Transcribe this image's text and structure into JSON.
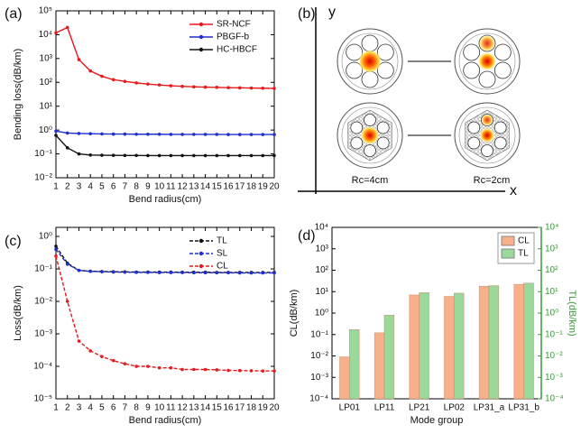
{
  "chart_data": [
    {
      "type": "line",
      "label": "(a)",
      "x_label": "Bend radius(cm)",
      "y_label": "Bending loss(dB/km)",
      "x": [
        1,
        2,
        3,
        4,
        5,
        6,
        7,
        8,
        9,
        10,
        11,
        12,
        13,
        14,
        15,
        16,
        17,
        18,
        19,
        20
      ],
      "xlim": [
        1,
        20
      ],
      "xticks": [
        1,
        2,
        3,
        4,
        5,
        6,
        7,
        8,
        9,
        10,
        11,
        12,
        13,
        14,
        15,
        16,
        17,
        18,
        19,
        20
      ],
      "ylim": [
        0.01,
        100000
      ],
      "log_y": true,
      "yticks": [
        {
          "value": 0.01,
          "label": "10⁻²"
        },
        {
          "value": 0.1,
          "label": "10⁻¹"
        },
        {
          "value": 1,
          "label": "10⁰"
        },
        {
          "value": 10,
          "label": "10¹"
        },
        {
          "value": 100,
          "label": "10²"
        },
        {
          "value": 1000,
          "label": "10³"
        },
        {
          "value": 10000,
          "label": "10⁴"
        },
        {
          "value": 100000,
          "label": "10⁵"
        }
      ],
      "line_style": "solid",
      "legend": "top-right",
      "series": [
        {
          "name": "SR-NCF",
          "color": "#e8191c",
          "values": [
            12000,
            20000,
            900,
            300,
            180,
            130,
            110,
            95,
            85,
            78,
            72,
            68,
            65,
            63,
            62,
            60,
            59,
            58,
            57,
            56
          ]
        },
        {
          "name": "PBGF-b",
          "color": "#1f2fd0",
          "values": [
            0.9,
            0.75,
            0.72,
            0.7,
            0.69,
            0.68,
            0.68,
            0.67,
            0.67,
            0.67,
            0.66,
            0.66,
            0.66,
            0.66,
            0.66,
            0.65,
            0.65,
            0.65,
            0.65,
            0.65
          ]
        },
        {
          "name": "HC-HBCF",
          "color": "#111111",
          "values": [
            0.6,
            0.18,
            0.1,
            0.09,
            0.088,
            0.087,
            0.086,
            0.086,
            0.085,
            0.085,
            0.085,
            0.085,
            0.085,
            0.085,
            0.085,
            0.085,
            0.085,
            0.085,
            0.085,
            0.085
          ]
        }
      ]
    },
    {
      "type": "line",
      "label": "(c)",
      "x_label": "Bend radius(cm)",
      "y_label": "Loss(dB/km)",
      "x": [
        1,
        2,
        3,
        4,
        5,
        6,
        7,
        8,
        9,
        10,
        11,
        12,
        13,
        14,
        15,
        16,
        17,
        18,
        19,
        20
      ],
      "xlim": [
        1,
        20
      ],
      "xticks": [
        1,
        2,
        3,
        4,
        5,
        6,
        7,
        8,
        9,
        10,
        11,
        12,
        13,
        14,
        15,
        16,
        17,
        18,
        19,
        20
      ],
      "ylim": [
        1e-05,
        1.9
      ],
      "log_y": true,
      "yticks": [
        {
          "value": 1e-05,
          "label": "10⁻⁵"
        },
        {
          "value": 0.0001,
          "label": "10⁻⁴"
        },
        {
          "value": 0.001,
          "label": "10⁻³"
        },
        {
          "value": 0.01,
          "label": "10⁻²"
        },
        {
          "value": 0.1,
          "label": "10⁻¹"
        },
        {
          "value": 1,
          "label": "10⁰"
        }
      ],
      "line_style": "dashed",
      "legend": "top-right",
      "series": [
        {
          "name": "TL",
          "color": "#111111",
          "values": [
            0.5,
            0.15,
            0.09,
            0.085,
            0.083,
            0.082,
            0.081,
            0.08,
            0.08,
            0.08,
            0.08,
            0.079,
            0.079,
            0.079,
            0.078,
            0.078,
            0.078,
            0.078,
            0.078,
            0.078
          ]
        },
        {
          "name": "SL",
          "color": "#1f2fd0",
          "values": [
            0.4,
            0.14,
            0.09,
            0.084,
            0.082,
            0.08,
            0.079,
            0.078,
            0.078,
            0.077,
            0.077,
            0.077,
            0.076,
            0.076,
            0.076,
            0.076,
            0.075,
            0.075,
            0.075,
            0.075
          ]
        },
        {
          "name": "CL",
          "color": "#e8191c",
          "values": [
            0.25,
            0.01,
            0.0006,
            0.0003,
            0.0002,
            0.00015,
            0.00012,
            0.0001,
            0.0001,
            9e-05,
            9e-05,
            8e-05,
            8e-05,
            8e-05,
            7.8e-05,
            7.5e-05,
            7.4e-05,
            7.3e-05,
            7.2e-05,
            7.2e-05
          ]
        }
      ]
    },
    {
      "type": "bar",
      "label": "(d)",
      "x_label": "Mode group",
      "y_label": "CL(dB/km)",
      "y2_label": "TL(dB/km)",
      "categories": [
        "LP01",
        "LP11",
        "LP21",
        "LP02",
        "LP31_a",
        "LP31_b"
      ],
      "ylim": [
        0.0001,
        10000
      ],
      "log_y": true,
      "yticks": [
        {
          "value": 0.0001,
          "label": "10⁻⁴"
        },
        {
          "value": 0.001,
          "label": "10⁻³"
        },
        {
          "value": 0.01,
          "label": "10⁻²"
        },
        {
          "value": 0.1,
          "label": "10⁻¹"
        },
        {
          "value": 1,
          "label": "10⁰"
        },
        {
          "value": 10,
          "label": "10¹"
        },
        {
          "value": 100,
          "label": "10²"
        },
        {
          "value": 1000,
          "label": "10³"
        },
        {
          "value": 10000,
          "label": "10⁴"
        }
      ],
      "y2lim": [
        0.0001,
        10000
      ],
      "y2ticks": [
        {
          "value": 0.0001,
          "label": "10⁻⁴"
        },
        {
          "value": 0.001,
          "label": "10⁻³"
        },
        {
          "value": 0.01,
          "label": "10⁻²"
        },
        {
          "value": 0.1,
          "label": "10⁻¹"
        },
        {
          "value": 1,
          "label": "10⁰"
        },
        {
          "value": 10,
          "label": "10¹"
        },
        {
          "value": 100,
          "label": "10²"
        },
        {
          "value": 1000,
          "label": "10³"
        },
        {
          "value": 10000,
          "label": "10⁴"
        }
      ],
      "y2_color": "#3a9a3a",
      "legend": "top-right",
      "series": [
        {
          "name": "CL",
          "color": "#f7b08a",
          "values": [
            0.009,
            0.12,
            7,
            6,
            18,
            22
          ]
        },
        {
          "name": "TL",
          "color": "#9bd99a",
          "axis": "y2",
          "values": [
            0.17,
            0.8,
            9,
            8.5,
            19,
            25
          ]
        }
      ]
    }
  ],
  "diagram": {
    "label": "(b)",
    "y_axis": "y",
    "x_axis": "x",
    "captions": [
      "Rc=4cm",
      "Rc=2cm"
    ]
  }
}
